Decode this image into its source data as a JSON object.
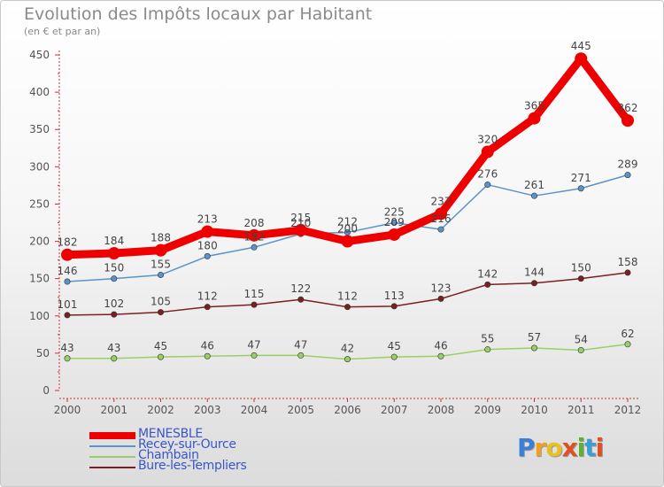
{
  "title": "Evolution des Impôts locaux par Habitant",
  "subtitle": "(en € et par an)",
  "logo": {
    "letters": [
      {
        "ch": "P",
        "color": "#3b7fd6"
      },
      {
        "ch": "r",
        "color": "#f0a020"
      },
      {
        "ch": "o",
        "color": "#e8c020"
      },
      {
        "ch": "x",
        "color": "#e05020"
      },
      {
        "ch": "i",
        "color": "#60b030"
      },
      {
        "ch": "t",
        "color": "#3b9fd6"
      },
      {
        "ch": "i",
        "color": "#e05020"
      }
    ]
  },
  "chart_data": {
    "type": "line",
    "title": "Evolution des Impôts locaux par Habitant",
    "subtitle": "(en € et par an)",
    "xlabel": "",
    "ylabel": "",
    "ylim": [
      0,
      450
    ],
    "yticks": [
      0,
      50,
      100,
      150,
      200,
      250,
      300,
      350,
      400,
      450
    ],
    "grid": false,
    "legend_position": "bottom-left",
    "x": [
      "2000",
      "2001",
      "2002",
      "2003",
      "2004",
      "2005",
      "2006",
      "2007",
      "2008",
      "2009",
      "2010",
      "2011",
      "2012"
    ],
    "series": [
      {
        "name": "MENESBLE",
        "color": "#ee0000",
        "values": [
          182,
          184,
          188,
          213,
          208,
          215,
          200,
          209,
          237,
          320,
          365,
          445,
          362
        ]
      },
      {
        "name": "Recey-sur-Ource",
        "color": "#5a93c8",
        "values": [
          146,
          150,
          155,
          180,
          192,
          210,
          212,
          225,
          216,
          276,
          261,
          271,
          289
        ]
      },
      {
        "name": "Chambain",
        "color": "#99d066",
        "values": [
          43,
          43,
          45,
          46,
          47,
          47,
          42,
          45,
          46,
          55,
          57,
          54,
          62
        ]
      },
      {
        "name": "Bure-les-Templiers",
        "color": "#7a2020",
        "values": [
          101,
          102,
          105,
          112,
          115,
          122,
          112,
          113,
          123,
          142,
          144,
          150,
          158
        ]
      }
    ]
  }
}
